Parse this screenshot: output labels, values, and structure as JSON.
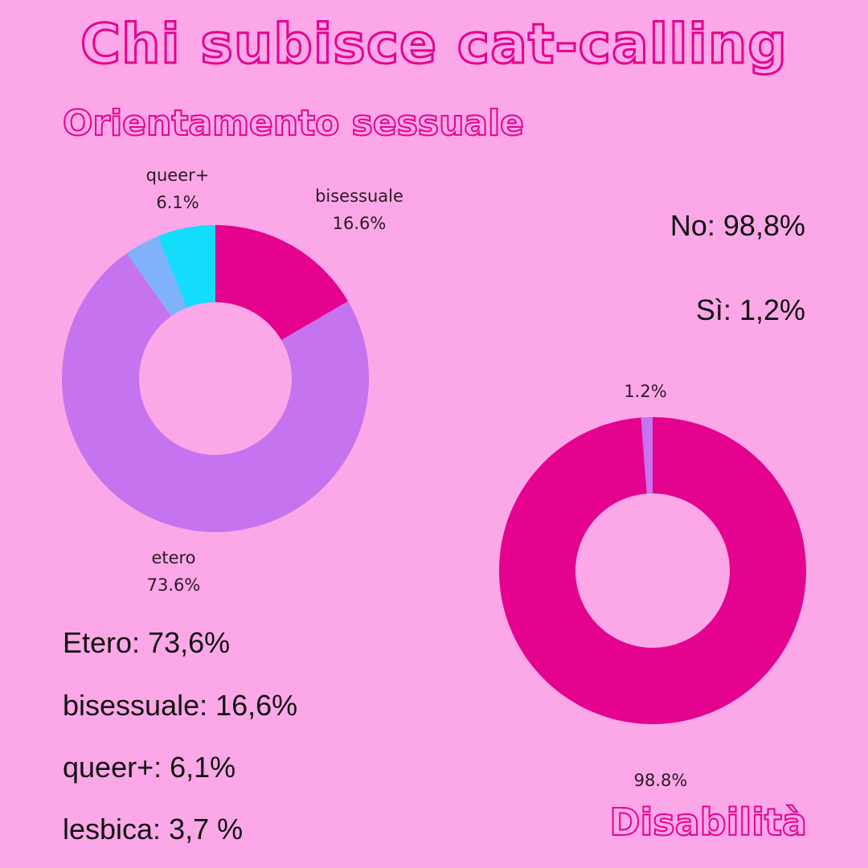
{
  "title": "Chi subisce cat-calling",
  "orientation": {
    "heading": "Orientamento sessuale",
    "summary": [
      "Etero: 73,6%",
      "bisessuale: 16,6%",
      "queer+: 6,1%",
      "lesbica: 3,7 %"
    ]
  },
  "disability": {
    "heading": "Disabilità",
    "summary": [
      "No: 98,8%",
      "Sì: 1,2%"
    ]
  },
  "chart_data": [
    {
      "type": "pie",
      "title": "",
      "donut": true,
      "slices": [
        {
          "label": "bisessuale",
          "value": 16.6,
          "display": "16.6%",
          "color": "#e4028f"
        },
        {
          "label": "etero",
          "value": 73.6,
          "display": "73.6%",
          "color": "#c573ee"
        },
        {
          "label": "",
          "value": 3.7,
          "display": "",
          "color": "#7fb2fa"
        },
        {
          "label": "queer+",
          "value": 6.1,
          "display": "6.1%",
          "color": "#14dcfb"
        }
      ]
    },
    {
      "type": "pie",
      "title": "",
      "donut": true,
      "slices": [
        {
          "label": "",
          "value": 98.8,
          "display": "98.8%",
          "color": "#e4028f"
        },
        {
          "label": "",
          "value": 1.2,
          "display": "1.2%",
          "color": "#c573ee"
        }
      ]
    }
  ]
}
